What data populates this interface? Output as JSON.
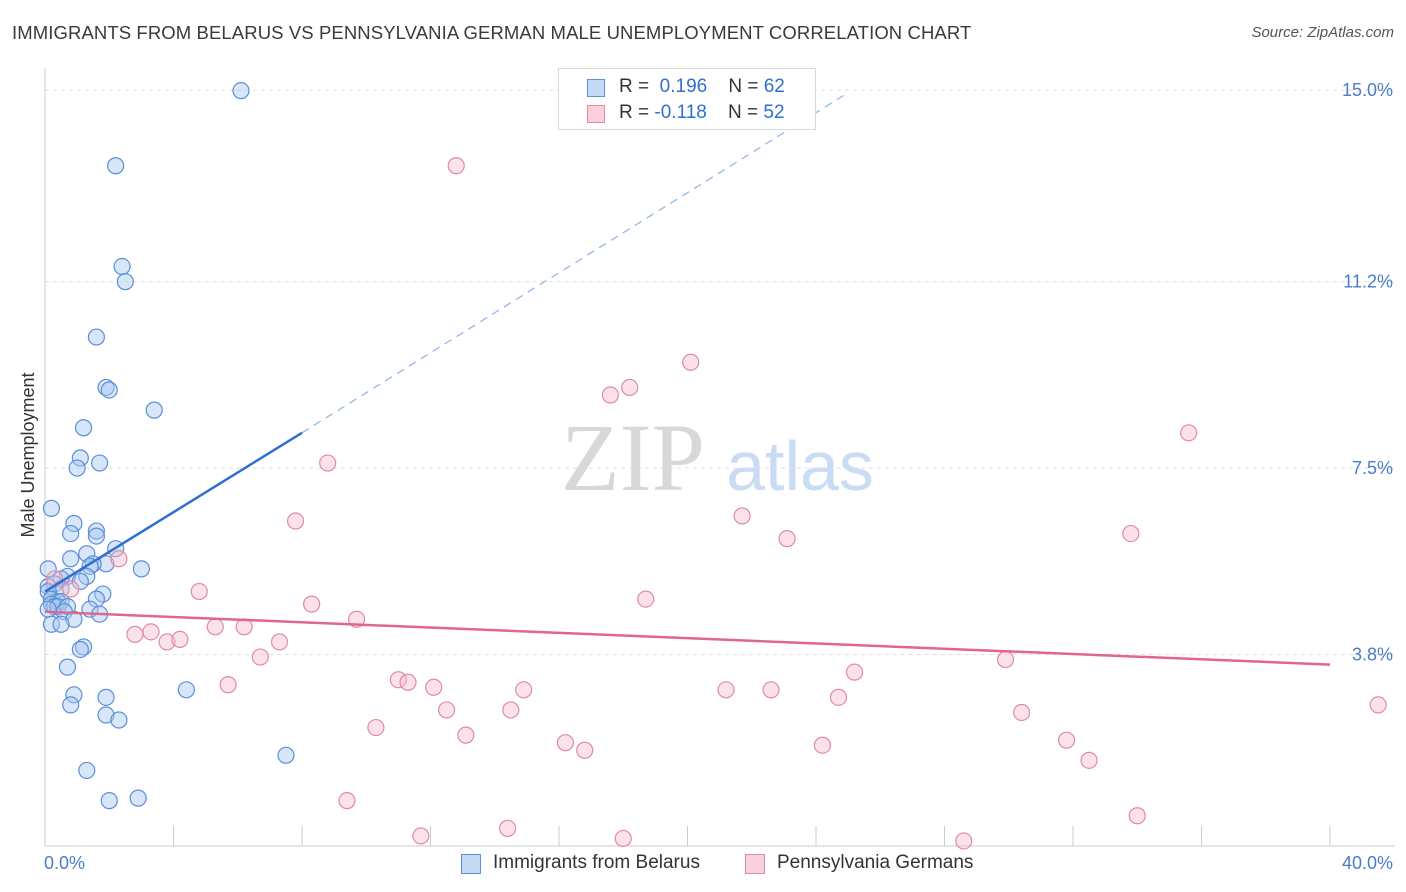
{
  "chart_data": {
    "type": "scatter",
    "title": "IMMIGRANTS FROM BELARUS VS PENNSYLVANIA GERMAN MALE UNEMPLOYMENT CORRELATION CHART",
    "source": "Source: ZipAtlas.com",
    "xlabel": "",
    "ylabel": "Male Unemployment",
    "xlim": [
      0,
      40
    ],
    "ylim": [
      0,
      15.4
    ],
    "x_tick_labels": [
      "0.0%",
      "40.0%"
    ],
    "y_ticks": [
      3.8,
      7.5,
      11.2,
      15.0
    ],
    "y_tick_labels": [
      "3.8%",
      "7.5%",
      "11.2%",
      "15.0%"
    ],
    "watermark": {
      "zip": "ZIP",
      "atlas": "atlas"
    },
    "colors": {
      "belarus_fill": "#a9c8f2",
      "belarus_stroke": "#5b8fd6",
      "belarus_line": "#2f6fd0",
      "penn_fill": "#f6bfd0",
      "penn_stroke": "#e08aa8",
      "penn_line": "#e06690",
      "tick": "#4a7cc9",
      "grid": "#dddddd"
    },
    "legend": {
      "r_label": "R =",
      "n_label": "N =",
      "rows": [
        {
          "r": "0.196",
          "n": "62"
        },
        {
          "r": "-0.118",
          "n": "52"
        }
      ]
    },
    "series": [
      {
        "name": "Immigrants from Belarus",
        "points": [
          [
            6.1,
            14.99
          ],
          [
            2.2,
            13.5
          ],
          [
            2.4,
            11.5
          ],
          [
            2.5,
            11.2
          ],
          [
            1.6,
            10.1
          ],
          [
            1.9,
            9.1
          ],
          [
            2.0,
            9.05
          ],
          [
            3.4,
            8.65
          ],
          [
            1.2,
            8.3
          ],
          [
            1.1,
            7.7
          ],
          [
            1.7,
            7.6
          ],
          [
            1.0,
            7.5
          ],
          [
            0.2,
            6.7
          ],
          [
            0.9,
            6.4
          ],
          [
            1.6,
            6.25
          ],
          [
            0.8,
            6.2
          ],
          [
            1.6,
            6.15
          ],
          [
            2.2,
            5.9
          ],
          [
            1.3,
            5.8
          ],
          [
            0.8,
            5.7
          ],
          [
            1.9,
            5.6
          ],
          [
            1.5,
            5.6
          ],
          [
            1.4,
            5.55
          ],
          [
            3.0,
            5.5
          ],
          [
            0.1,
            5.5
          ],
          [
            0.7,
            5.35
          ],
          [
            1.3,
            5.35
          ],
          [
            0.5,
            5.3
          ],
          [
            1.1,
            5.25
          ],
          [
            0.3,
            5.2
          ],
          [
            0.1,
            5.15
          ],
          [
            0.5,
            5.1
          ],
          [
            0.1,
            5.05
          ],
          [
            1.8,
            5.0
          ],
          [
            0.2,
            4.9
          ],
          [
            1.6,
            4.9
          ],
          [
            0.4,
            4.85
          ],
          [
            0.5,
            4.85
          ],
          [
            0.2,
            4.8
          ],
          [
            0.3,
            4.75
          ],
          [
            0.4,
            4.75
          ],
          [
            0.7,
            4.75
          ],
          [
            0.1,
            4.7
          ],
          [
            1.4,
            4.7
          ],
          [
            0.6,
            4.65
          ],
          [
            1.7,
            4.6
          ],
          [
            0.9,
            4.5
          ],
          [
            0.2,
            4.4
          ],
          [
            0.5,
            4.4
          ],
          [
            1.2,
            3.95
          ],
          [
            1.1,
            3.9
          ],
          [
            0.7,
            3.55
          ],
          [
            0.9,
            3.0
          ],
          [
            1.9,
            2.95
          ],
          [
            4.4,
            3.1
          ],
          [
            0.8,
            2.8
          ],
          [
            1.9,
            2.6
          ],
          [
            2.3,
            2.5
          ],
          [
            7.5,
            1.8
          ],
          [
            1.3,
            1.5
          ],
          [
            2.0,
            0.9
          ],
          [
            2.9,
            0.95
          ]
        ]
      },
      {
        "name": "Pennsylvania Germans",
        "points": [
          [
            12.8,
            13.5
          ],
          [
            20.1,
            9.6
          ],
          [
            17.6,
            8.95
          ],
          [
            18.2,
            9.1
          ],
          [
            35.6,
            8.2
          ],
          [
            8.8,
            7.6
          ],
          [
            7.8,
            6.45
          ],
          [
            21.7,
            6.55
          ],
          [
            23.1,
            6.1
          ],
          [
            33.8,
            6.2
          ],
          [
            2.3,
            5.7
          ],
          [
            0.3,
            5.3
          ],
          [
            0.8,
            5.1
          ],
          [
            4.8,
            5.05
          ],
          [
            8.3,
            4.8
          ],
          [
            18.7,
            4.9
          ],
          [
            9.7,
            4.5
          ],
          [
            5.3,
            4.35
          ],
          [
            6.2,
            4.35
          ],
          [
            2.8,
            4.2
          ],
          [
            3.3,
            4.25
          ],
          [
            3.8,
            4.05
          ],
          [
            4.2,
            4.1
          ],
          [
            7.3,
            4.05
          ],
          [
            6.7,
            3.75
          ],
          [
            29.9,
            3.7
          ],
          [
            25.2,
            3.45
          ],
          [
            11.0,
            3.3
          ],
          [
            11.3,
            3.25
          ],
          [
            5.7,
            3.2
          ],
          [
            12.1,
            3.15
          ],
          [
            14.9,
            3.1
          ],
          [
            21.2,
            3.1
          ],
          [
            22.6,
            3.1
          ],
          [
            24.7,
            2.95
          ],
          [
            41.5,
            2.8
          ],
          [
            12.5,
            2.7
          ],
          [
            14.5,
            2.7
          ],
          [
            30.4,
            2.65
          ],
          [
            10.3,
            2.35
          ],
          [
            13.1,
            2.2
          ],
          [
            16.2,
            2.05
          ],
          [
            24.2,
            2.0
          ],
          [
            31.8,
            2.1
          ],
          [
            16.8,
            1.9
          ],
          [
            32.5,
            1.7
          ],
          [
            9.4,
            0.9
          ],
          [
            34.0,
            0.6
          ],
          [
            14.4,
            0.35
          ],
          [
            18.0,
            0.15
          ],
          [
            11.7,
            0.2
          ],
          [
            28.6,
            0.1
          ]
        ]
      }
    ],
    "trend_lines": [
      {
        "series": "Immigrants from Belarus",
        "solid": [
          [
            0.0,
            5.05
          ],
          [
            8.0,
            8.2
          ]
        ],
        "dashed": [
          [
            8.0,
            8.2
          ],
          [
            25.0,
            14.95
          ]
        ]
      },
      {
        "series": "Pennsylvania Germans",
        "solid": [
          [
            0.0,
            4.65
          ],
          [
            40.0,
            3.6
          ]
        ]
      }
    ]
  }
}
